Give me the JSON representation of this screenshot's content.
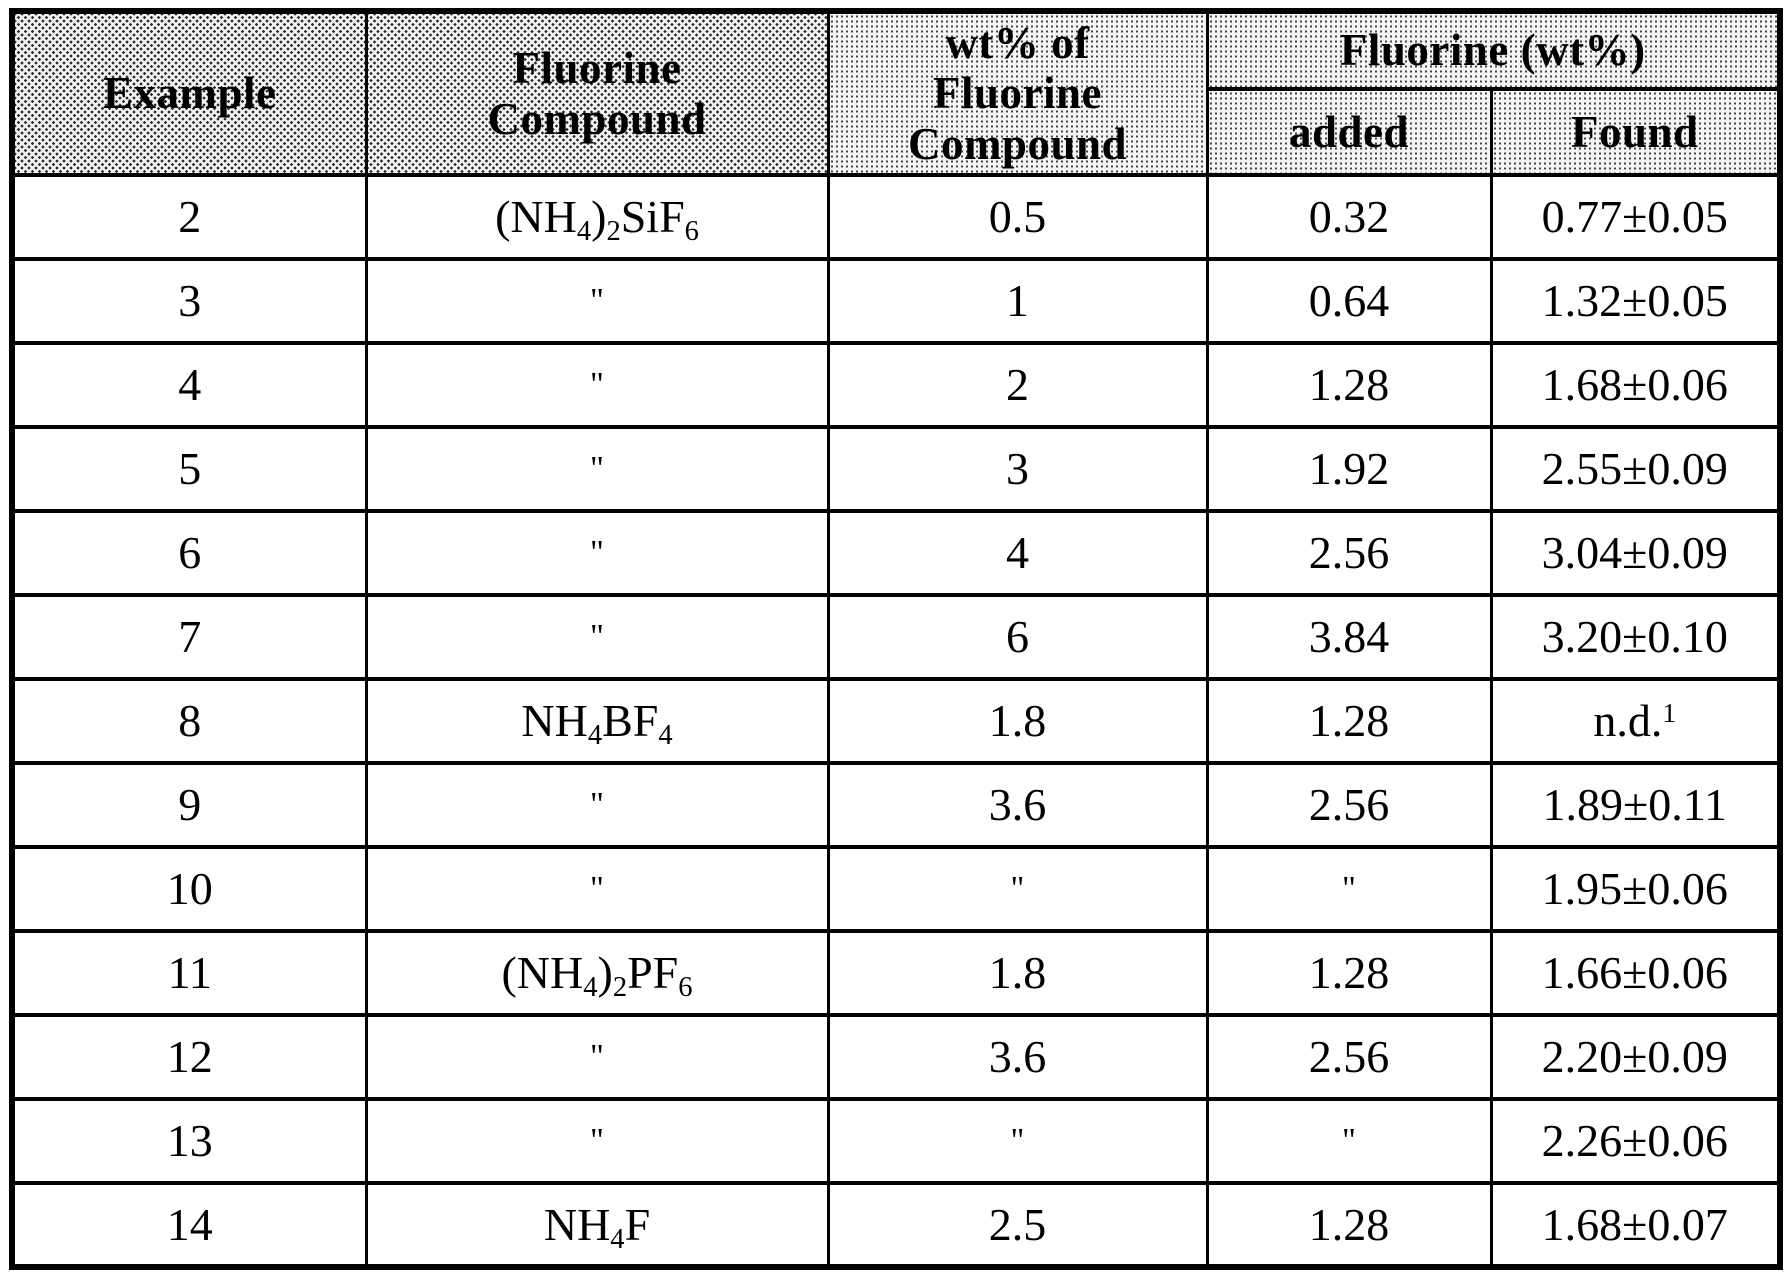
{
  "table": {
    "header": {
      "example": "Example",
      "compound": "Fluorine\nCompound",
      "wt_pct": "wt% of\nFluorine\nCompound",
      "fluorine_wt": "Fluorine (wt%)",
      "added": "added",
      "found": "Found"
    },
    "rows": [
      {
        "example": "2",
        "compound": [
          {
            "t": "(NH"
          },
          {
            "t": "4",
            "s": "sub"
          },
          {
            "t": ")"
          },
          {
            "t": "2",
            "s": "sub"
          },
          {
            "t": "SiF"
          },
          {
            "t": "6",
            "s": "sub"
          }
        ],
        "wt_pct": "0.5",
        "added": "0.32",
        "found": "0.77±0.05"
      },
      {
        "example": "3",
        "compound": "\"",
        "wt_pct": "1",
        "added": "0.64",
        "found": "1.32±0.05"
      },
      {
        "example": "4",
        "compound": "\"",
        "wt_pct": "2",
        "added": "1.28",
        "found": "1.68±0.06"
      },
      {
        "example": "5",
        "compound": "\"",
        "wt_pct": "3",
        "added": "1.92",
        "found": "2.55±0.09"
      },
      {
        "example": "6",
        "compound": "\"",
        "wt_pct": "4",
        "added": "2.56",
        "found": "3.04±0.09"
      },
      {
        "example": "7",
        "compound": "\"",
        "wt_pct": "6",
        "added": "3.84",
        "found": "3.20±0.10"
      },
      {
        "example": "8",
        "compound": [
          {
            "t": "NH"
          },
          {
            "t": "4",
            "s": "sub"
          },
          {
            "t": "BF"
          },
          {
            "t": "4",
            "s": "sub"
          }
        ],
        "wt_pct": "1.8",
        "added": "1.28",
        "found": [
          {
            "t": "n.d."
          },
          {
            "t": "1",
            "s": "sup"
          }
        ]
      },
      {
        "example": "9",
        "compound": "\"",
        "wt_pct": "3.6",
        "added": "2.56",
        "found": "1.89±0.11"
      },
      {
        "example": "10",
        "compound": "\"",
        "wt_pct": "\"",
        "added": "\"",
        "found": "1.95±0.06"
      },
      {
        "example": "11",
        "compound": [
          {
            "t": "(NH"
          },
          {
            "t": "4",
            "s": "sub"
          },
          {
            "t": ")"
          },
          {
            "t": "2",
            "s": "sub"
          },
          {
            "t": "PF"
          },
          {
            "t": "6",
            "s": "sub"
          }
        ],
        "wt_pct": "1.8",
        "added": "1.28",
        "found": "1.66±0.06"
      },
      {
        "example": "12",
        "compound": "\"",
        "wt_pct": "3.6",
        "added": "2.56",
        "found": "2.20±0.09"
      },
      {
        "example": "13",
        "compound": "\"",
        "wt_pct": "\"",
        "added": "\"",
        "found": "2.26±0.06"
      },
      {
        "example": "14",
        "compound": [
          {
            "t": "NH"
          },
          {
            "t": "4",
            "s": "sub"
          },
          {
            "t": "F"
          }
        ],
        "wt_pct": "2.5",
        "added": "1.28",
        "found": "1.68±0.07"
      }
    ]
  }
}
